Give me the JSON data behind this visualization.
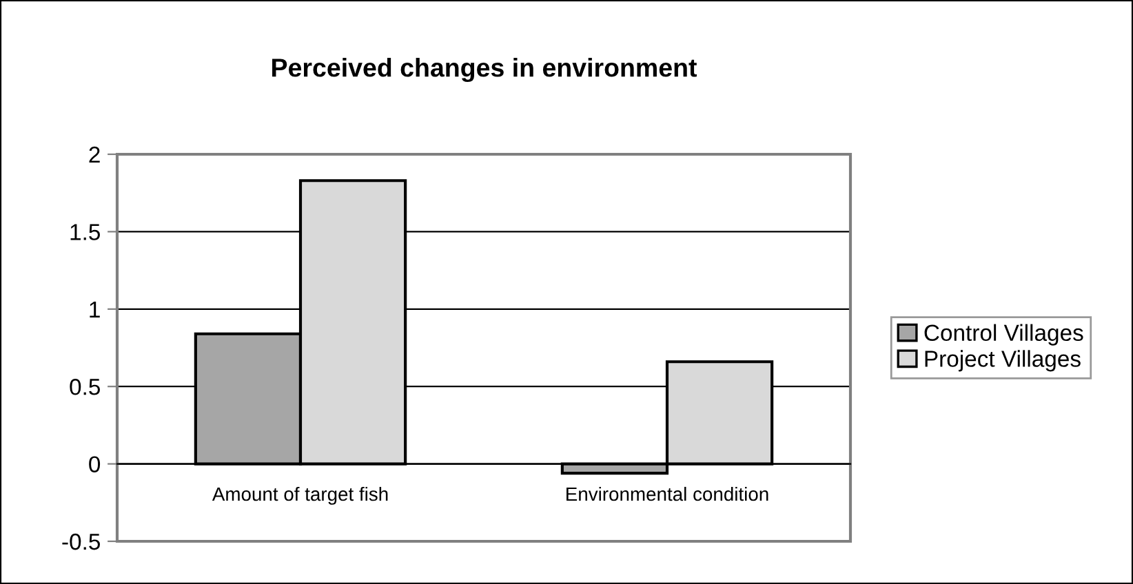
{
  "chart_data": {
    "type": "bar",
    "title": "Perceived changes in environment",
    "categories": [
      "Amount of target fish",
      "Environmental condition"
    ],
    "series": [
      {
        "name": "Control Villages",
        "color": "#a6a6a6",
        "values": [
          0.84,
          -0.06
        ]
      },
      {
        "name": "Project Villages",
        "color": "#d9d9d9",
        "values": [
          1.83,
          0.66
        ]
      }
    ],
    "ylim": [
      -0.5,
      2
    ],
    "yticks": [
      -0.5,
      0,
      0.5,
      1,
      1.5,
      2
    ],
    "grid": "y",
    "legend": "right"
  }
}
